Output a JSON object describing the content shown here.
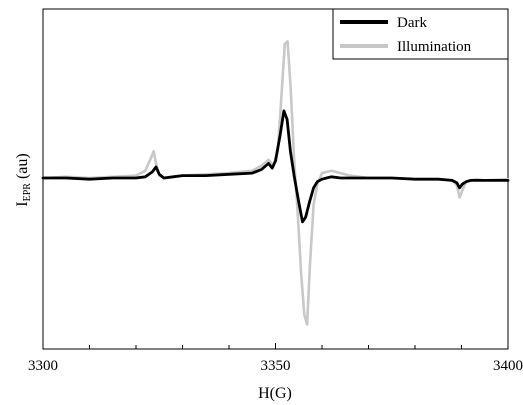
{
  "chart_data": {
    "type": "line",
    "title": "",
    "xlabel": "H(G)",
    "ylabel_main": "I",
    "ylabel_sub": "EPR",
    "ylabel_suffix": " (au)",
    "xlim": [
      3300,
      3400
    ],
    "ylim": [
      -1.0,
      1.0
    ],
    "x_ticks": [
      3300,
      3350,
      3400
    ],
    "x_tick_labels": [
      "3300",
      "3350",
      "3400"
    ],
    "y_ticks_shown": false,
    "grid": false,
    "legend_position": "top-right",
    "series": [
      {
        "name": "Dark",
        "color": "#000000",
        "x": [
          3300,
          3305,
          3310,
          3315,
          3320,
          3322,
          3323.5,
          3324.3,
          3325,
          3326,
          3328,
          3330,
          3335,
          3340,
          3345,
          3347,
          3348.5,
          3349.3,
          3350,
          3351,
          3351.8,
          3352.5,
          3353.2,
          3354,
          3355,
          3355.8,
          3356.5,
          3357.3,
          3358.2,
          3359,
          3360,
          3361,
          3362,
          3364,
          3366,
          3370,
          3375,
          3380,
          3385,
          3388,
          3389,
          3389.6,
          3390.2,
          3391,
          3392,
          3395,
          3400
        ],
        "values": [
          0.0,
          0.0,
          -0.01,
          0.0,
          0.0,
          0.01,
          0.05,
          0.09,
          0.03,
          0.0,
          0.01,
          0.02,
          0.02,
          0.03,
          0.04,
          0.07,
          0.12,
          0.08,
          0.14,
          0.35,
          0.55,
          0.48,
          0.22,
          0.02,
          -0.2,
          -0.36,
          -0.32,
          -0.2,
          -0.08,
          -0.03,
          -0.01,
          0.0,
          0.01,
          0.0,
          0.0,
          0.0,
          0.0,
          -0.01,
          -0.01,
          -0.02,
          -0.04,
          -0.08,
          -0.05,
          -0.03,
          -0.02,
          -0.02,
          -0.02
        ]
      },
      {
        "name": "Illumination",
        "color": "#c8c8c8",
        "x": [
          3300,
          3305,
          3310,
          3315,
          3320,
          3322,
          3323.3,
          3323.8,
          3324.3,
          3325,
          3326,
          3328,
          3330,
          3335,
          3340,
          3345,
          3347,
          3348.5,
          3349.5,
          3350.5,
          3351.3,
          3352,
          3352.6,
          3353.3,
          3354,
          3354.8,
          3355.5,
          3356.2,
          3356.8,
          3357.4,
          3358.2,
          3359,
          3360,
          3362,
          3364,
          3366,
          3370,
          3375,
          3380,
          3385,
          3388,
          3389,
          3389.6,
          3390.2,
          3391,
          3393,
          3395,
          3400
        ],
        "values": [
          0.0,
          0.01,
          0.0,
          0.01,
          0.02,
          0.06,
          0.17,
          0.22,
          0.12,
          0.02,
          0.0,
          0.01,
          0.02,
          0.03,
          0.04,
          0.06,
          0.1,
          0.15,
          0.1,
          0.22,
          0.68,
          1.1,
          1.12,
          0.72,
          0.15,
          -0.3,
          -0.78,
          -1.12,
          -1.2,
          -0.72,
          -0.22,
          -0.05,
          0.04,
          0.06,
          0.04,
          0.02,
          0.0,
          0.0,
          -0.01,
          -0.01,
          -0.02,
          -0.06,
          -0.16,
          -0.1,
          -0.03,
          -0.01,
          -0.02,
          -0.01
        ]
      }
    ]
  }
}
